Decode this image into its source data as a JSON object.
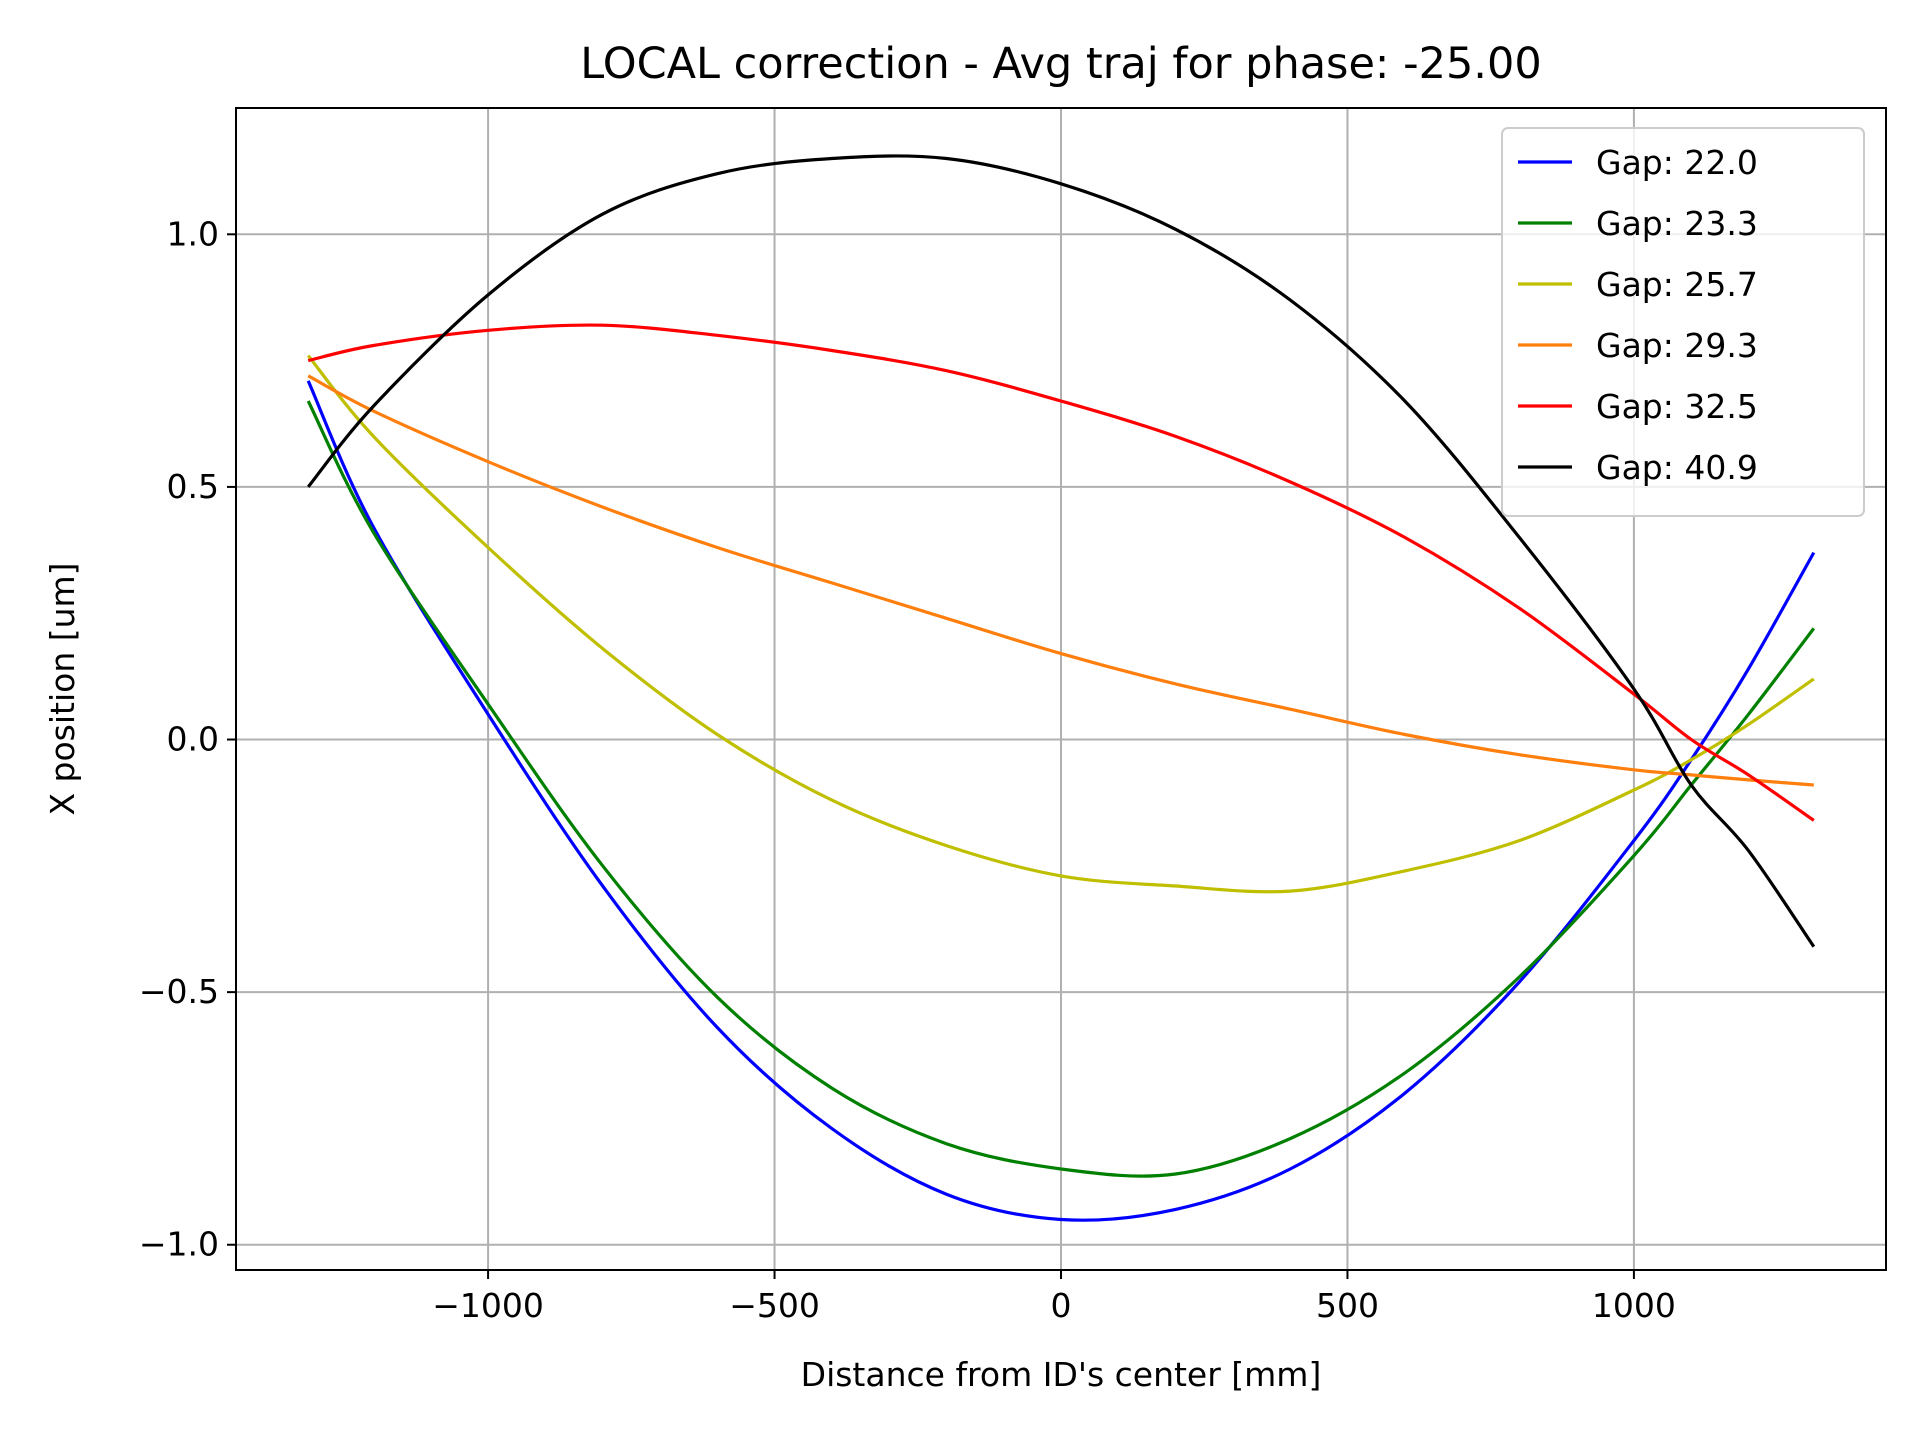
{
  "chart_data": {
    "type": "line",
    "title": "LOCAL correction - Avg traj for phase: -25.00",
    "xlabel": "Distance from ID's center [mm]",
    "ylabel": "X position [um]",
    "xlim": [
      -1440,
      1440
    ],
    "ylim": [
      -1.05,
      1.25
    ],
    "grid": true,
    "legend_position": "upper right",
    "xticks": [
      -1000,
      -500,
      0,
      500,
      1000
    ],
    "xtick_labels": [
      "−1000",
      "−500",
      "0",
      "500",
      "1000"
    ],
    "yticks": [
      -1.0,
      -0.5,
      0.0,
      0.5,
      1.0
    ],
    "ytick_labels": [
      "−1.0",
      "−0.5",
      "0.0",
      "0.5",
      "1.0"
    ],
    "x": [
      -1314,
      -1200,
      -1000,
      -800,
      -600,
      -400,
      -200,
      0,
      200,
      400,
      600,
      800,
      1000,
      1100,
      1200,
      1314
    ],
    "series": [
      {
        "name": "Gap: 22.0",
        "color": "#0000ff",
        "values": [
          0.71,
          0.42,
          0.05,
          -0.29,
          -0.57,
          -0.77,
          -0.9,
          -0.95,
          -0.93,
          -0.85,
          -0.7,
          -0.48,
          -0.2,
          -0.04,
          0.14,
          0.37
        ]
      },
      {
        "name": "Gap: 23.3",
        "color": "#008000",
        "values": [
          0.67,
          0.41,
          0.07,
          -0.25,
          -0.51,
          -0.69,
          -0.8,
          -0.85,
          -0.86,
          -0.79,
          -0.66,
          -0.47,
          -0.23,
          -0.09,
          0.05,
          0.22
        ]
      },
      {
        "name": "Gap: 25.7",
        "color": "#bfbf00",
        "values": [
          0.76,
          0.6,
          0.38,
          0.18,
          0.01,
          -0.12,
          -0.21,
          -0.27,
          -0.29,
          -0.3,
          -0.26,
          -0.2,
          -0.1,
          -0.04,
          0.03,
          0.12
        ]
      },
      {
        "name": "Gap: 29.3",
        "color": "#ff7f0e",
        "values": [
          0.72,
          0.65,
          0.55,
          0.46,
          0.38,
          0.31,
          0.24,
          0.17,
          0.11,
          0.06,
          0.01,
          -0.03,
          -0.06,
          -0.07,
          -0.08,
          -0.09
        ]
      },
      {
        "name": "Gap: 32.5",
        "color": "#ff0000",
        "values": [
          0.75,
          0.78,
          0.81,
          0.82,
          0.8,
          0.77,
          0.73,
          0.67,
          0.6,
          0.51,
          0.4,
          0.26,
          0.09,
          0.0,
          -0.07,
          -0.16
        ]
      },
      {
        "name": "Gap: 40.9",
        "color": "#000000",
        "values": [
          0.5,
          0.66,
          0.88,
          1.04,
          1.12,
          1.15,
          1.15,
          1.1,
          1.01,
          0.87,
          0.67,
          0.4,
          0.1,
          -0.09,
          -0.22,
          -0.41
        ]
      }
    ]
  }
}
